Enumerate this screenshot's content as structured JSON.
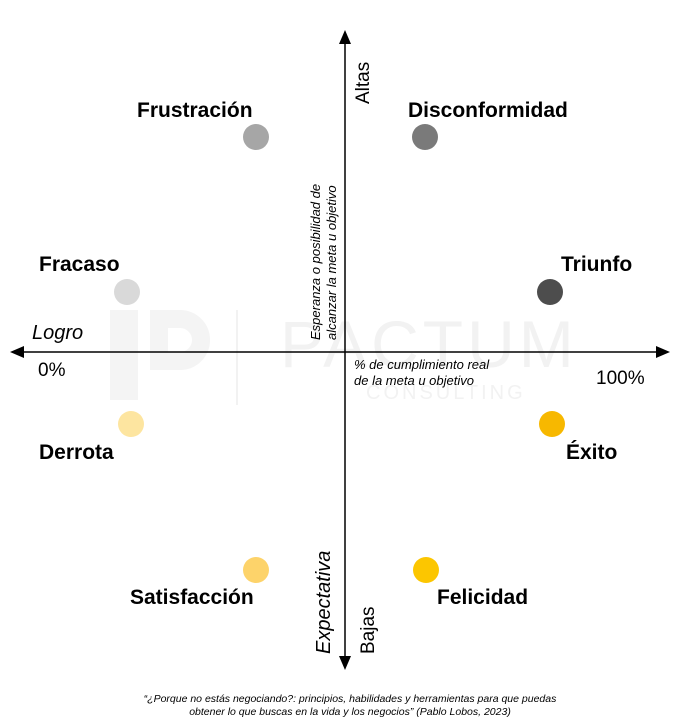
{
  "watermark": {
    "brand": "PACTUM",
    "sub": "CONSULTING"
  },
  "axes": {
    "horizontal_name": "Logro",
    "horizontal_min": "0%",
    "horizontal_max": "100%",
    "horizontal_desc_line1": "% de cumplimiento real",
    "horizontal_desc_line2": "de la meta u objetivo",
    "vertical_name": "Expectativa",
    "vertical_high": "Altas",
    "vertical_low": "Bajas",
    "vertical_desc_line1": "Esperanza o posibilidad de",
    "vertical_desc_line2": "alcanzar  la meta u objetivo"
  },
  "states": {
    "frustracion": {
      "label": "Frustración",
      "color": "#a6a6a6"
    },
    "disconformidad": {
      "label": "Disconformidad",
      "color": "#7a7a7a"
    },
    "fracaso": {
      "label": "Fracaso",
      "color": "#d9d9d9"
    },
    "triunfo": {
      "label": "Triunfo",
      "color": "#4d4d4d"
    },
    "derrota": {
      "label": "Derrota",
      "color": "#fde5a0"
    },
    "exito": {
      "label": "Éxito",
      "color": "#f7b800"
    },
    "satisfaccion": {
      "label": "Satisfacción",
      "color": "#fdd36a"
    },
    "felicidad": {
      "label": "Felicidad",
      "color": "#fcc600"
    }
  },
  "caption_line1": "“¿Porque no estás negociando?: principios, habilidades y herramientas para que puedas",
  "caption_line2": "obtener lo que buscas en la vida y los negocios” (Pablo Lobos, 2023)"
}
